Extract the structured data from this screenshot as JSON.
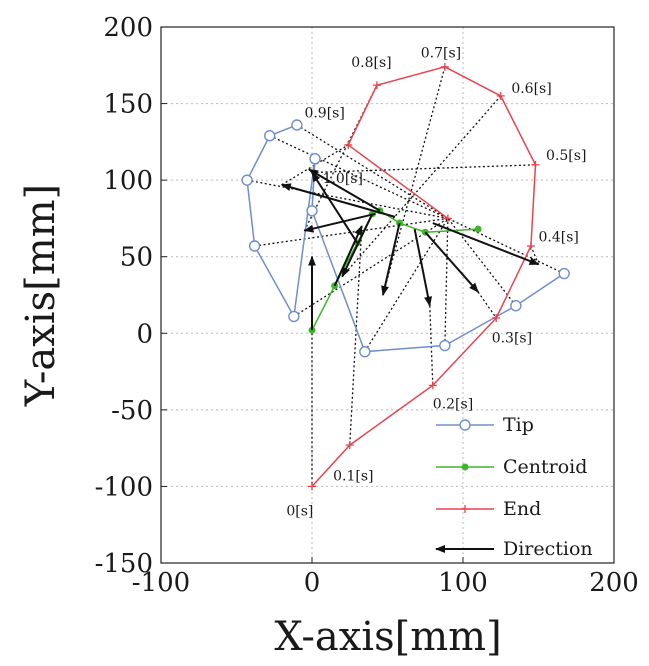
{
  "chart_data": {
    "type": "line",
    "xlabel": "X-axis[mm]",
    "ylabel": "Y-axis[mm]",
    "xlim": [
      -100,
      200
    ],
    "ylim": [
      -150,
      200
    ],
    "xticks": [
      -100,
      0,
      100,
      200
    ],
    "yticks": [
      -150,
      -100,
      -50,
      0,
      50,
      100,
      150,
      200
    ],
    "xtick_labels": [
      "-100",
      "0",
      "100",
      "200"
    ],
    "ytick_labels": [
      "-150",
      "-100",
      "-50",
      "0",
      "50",
      "100",
      "150",
      "200"
    ],
    "grid": "dotted lines at x=0, x=100, y=0, y=50, y=100, y=150",
    "legend_placement": "bottom-right",
    "colors": {
      "tip": "#6f8fca",
      "centroid": "#3fb62a",
      "end": "#e8444d",
      "direction": "#111111",
      "connector": "#111111",
      "grid": "#bbbbbb",
      "frame": "#222222"
    },
    "series": [
      {
        "name": "Tip",
        "marker": "circle",
        "x": [
          -10,
          -28,
          -43,
          -38,
          -12,
          2,
          0,
          35,
          88,
          135,
          167
        ],
        "y": [
          136,
          129,
          100,
          57,
          11,
          114,
          80,
          -12,
          -8,
          18,
          39
        ]
      },
      {
        "name": "Centroid",
        "marker": "dot",
        "x": [
          0,
          15,
          30,
          40,
          45,
          58,
          75,
          110
        ],
        "y": [
          2,
          31,
          59,
          78,
          80,
          72,
          66,
          68
        ]
      },
      {
        "name": "End",
        "marker": "plus",
        "x": [
          0,
          25,
          80,
          122,
          145,
          148,
          125,
          88,
          43,
          24,
          90
        ],
        "y": [
          -100,
          -73,
          -34,
          10,
          57,
          110,
          155,
          174,
          162,
          123,
          75
        ]
      },
      {
        "name": "Direction",
        "marker": "arrow"
      }
    ],
    "direction_arrows": [
      {
        "from": [
          0,
          2
        ],
        "to": [
          0,
          50
        ]
      },
      {
        "from": [
          15,
          31
        ],
        "to": [
          33,
          70
        ]
      },
      {
        "from": [
          30,
          59
        ],
        "to": [
          0,
          105
        ]
      },
      {
        "from": [
          40,
          78
        ],
        "to": [
          20,
          37
        ]
      },
      {
        "from": [
          42,
          78
        ],
        "to": [
          -5,
          67
        ]
      },
      {
        "from": [
          55,
          76
        ],
        "to": [
          -20,
          97
        ]
      },
      {
        "from": [
          58,
          72
        ],
        "to": [
          47,
          25
        ]
      },
      {
        "from": [
          68,
          68
        ],
        "to": [
          78,
          18
        ]
      },
      {
        "from": [
          75,
          66
        ],
        "to": [
          110,
          27
        ]
      },
      {
        "from": [
          80,
          72
        ],
        "to": [
          150,
          45
        ]
      },
      {
        "from": [
          45,
          80
        ],
        "to": [
          -2,
          107
        ]
      }
    ],
    "connectors": [
      {
        "from": [
          0,
          50
        ],
        "to": [
          0,
          -100
        ]
      },
      {
        "from": [
          33,
          70
        ],
        "to": [
          25,
          -73
        ]
      },
      {
        "from": [
          78,
          18
        ],
        "to": [
          80,
          -34
        ]
      },
      {
        "from": [
          110,
          27
        ],
        "to": [
          122,
          10
        ]
      },
      {
        "from": [
          150,
          45
        ],
        "to": [
          145,
          57
        ]
      },
      {
        "from": [
          0,
          105
        ],
        "to": [
          148,
          110
        ]
      },
      {
        "from": [
          20,
          37
        ],
        "to": [
          125,
          155
        ]
      },
      {
        "from": [
          47,
          25
        ],
        "to": [
          88,
          174
        ]
      },
      {
        "from": [
          -5,
          67
        ],
        "to": [
          43,
          162
        ]
      },
      {
        "from": [
          -20,
          97
        ],
        "to": [
          24,
          123
        ]
      },
      {
        "from": [
          -10,
          136
        ],
        "to": [
          90,
          75
        ]
      },
      {
        "from": [
          -28,
          129
        ],
        "to": [
          90,
          75
        ]
      },
      {
        "from": [
          -43,
          100
        ],
        "to": [
          90,
          75
        ]
      },
      {
        "from": [
          -38,
          57
        ],
        "to": [
          90,
          75
        ]
      },
      {
        "from": [
          -12,
          11
        ],
        "to": [
          90,
          75
        ]
      },
      {
        "from": [
          35,
          -12
        ],
        "to": [
          90,
          75
        ]
      },
      {
        "from": [
          88,
          -8
        ],
        "to": [
          90,
          75
        ]
      },
      {
        "from": [
          135,
          18
        ],
        "to": [
          90,
          75
        ]
      },
      {
        "from": [
          167,
          39
        ],
        "to": [
          90,
          75
        ]
      }
    ],
    "annotations": [
      {
        "text": "0[s]",
        "x": -17,
        "y": -119
      },
      {
        "text": "0.1[s]",
        "x": 14,
        "y": -96
      },
      {
        "text": "0.2[s]",
        "x": 80,
        "y": -49
      },
      {
        "text": "0.3[s]",
        "x": 119,
        "y": -6
      },
      {
        "text": "0.4[s]",
        "x": 150,
        "y": 60
      },
      {
        "text": "0.5[s]",
        "x": 155,
        "y": 113
      },
      {
        "text": "0.6[s]",
        "x": 132,
        "y": 157
      },
      {
        "text": "0.7[s]",
        "x": 72,
        "y": 180
      },
      {
        "text": "0.8[s]",
        "x": 26,
        "y": 174
      },
      {
        "text": "0.9[s]",
        "x": -5,
        "y": 141
      },
      {
        "text": "1.0[s]",
        "x": 7,
        "y": 98
      }
    ]
  }
}
